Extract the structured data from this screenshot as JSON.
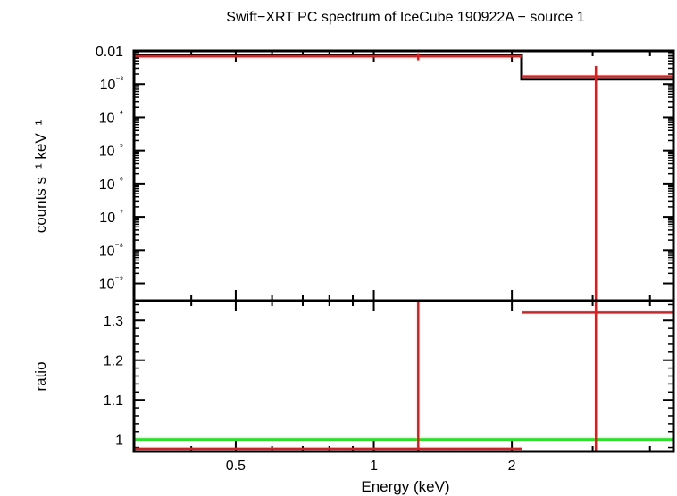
{
  "chart_data": [
    {
      "panel": "top",
      "type": "step",
      "title": "Swift−XRT PC spectrum of IceCube 190922A − source 1",
      "ylabel": "counts s⁻¹ keV⁻¹",
      "yscale": "log",
      "xscale": "log",
      "xlim": [
        0.3,
        4.5
      ],
      "ylim": [
        3e-10,
        0.01
      ],
      "ytick_labels": [
        "0.01",
        "10⁻³",
        "10⁻⁴",
        "10⁻⁵",
        "10⁻⁶",
        "10⁻⁷",
        "10⁻⁸",
        "10⁻⁹"
      ],
      "ytick_values": [
        0.01,
        0.001,
        0.0001,
        1e-05,
        1e-06,
        1e-07,
        1e-08,
        1e-09
      ],
      "model_color": "#000000",
      "data_color": "#e31a1c",
      "model_steps": [
        {
          "x0": 0.3,
          "x1": 2.1,
          "y": 0.0075
        },
        {
          "x0": 2.1,
          "x1": 4.5,
          "y": 0.0014
        }
      ],
      "data_points": [
        {
          "x": 1.25,
          "xerr": [
            0.3,
            2.1
          ],
          "y": 0.0068,
          "yerr": [
            0.0052,
            0.0085
          ]
        },
        {
          "x": 3.05,
          "xerr": [
            2.1,
            4.5
          ],
          "y": 0.0017,
          "yerr": [
            3e-10,
            0.0035
          ]
        }
      ]
    },
    {
      "panel": "bottom",
      "type": "ratio",
      "xlabel": "Energy (keV)",
      "ylabel": "ratio",
      "xscale": "log",
      "xlim": [
        0.3,
        4.5
      ],
      "ylim": [
        0.97,
        1.35
      ],
      "ytick_labels": [
        "1",
        "1.1",
        "1.2",
        "1.3"
      ],
      "ytick_values": [
        1.0,
        1.1,
        1.2,
        1.3
      ],
      "xtick_labels": [
        "0.5",
        "1",
        "2"
      ],
      "xtick_values": [
        0.5,
        1,
        2
      ],
      "reference_line": {
        "y": 1.0,
        "color": "#00ff00"
      },
      "data_points": [
        {
          "x": 1.25,
          "xerr": [
            0.3,
            2.1
          ],
          "y": 0.977,
          "yerr": [
            0.97,
            1.35
          ]
        },
        {
          "x": 3.05,
          "xerr": [
            2.1,
            4.5
          ],
          "y": 1.32,
          "yerr": [
            0.97,
            1.35
          ]
        }
      ]
    }
  ]
}
